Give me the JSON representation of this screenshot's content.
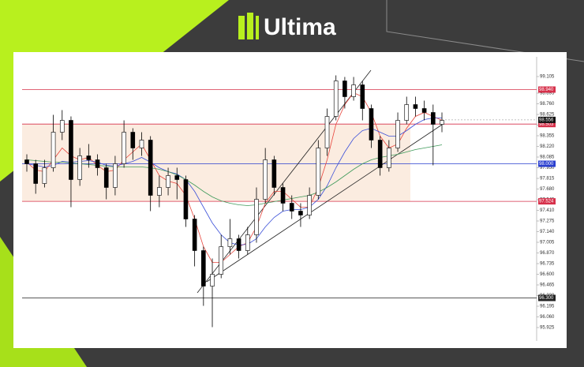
{
  "brand": "Ultima",
  "chart_data": {
    "type": "candlestick",
    "ylim": [
      95.875,
      99.225
    ],
    "yticks": [
      99.105,
      98.895,
      {
        "value": 98.76,
        "label": "98.760"
      },
      98.625,
      {
        "value": 98.49,
        "label": "98.490"
      },
      98.355,
      {
        "value": 98.22,
        "label": "98.220"
      },
      98.085,
      {
        "value": 97.95,
        "label": "97.950"
      },
      97.815,
      {
        "value": 97.68,
        "label": "97.680"
      },
      97.545,
      {
        "value": 97.41,
        "label": "97.410"
      },
      97.275,
      {
        "value": 97.14,
        "label": "97.140"
      },
      97.005,
      {
        "value": 96.87,
        "label": "96.870"
      },
      96.735,
      {
        "value": 96.6,
        "label": "96.600"
      },
      96.465,
      {
        "value": 96.33,
        "label": "96.330"
      },
      96.195,
      {
        "value": 96.06,
        "label": "96.060"
      },
      95.925
    ],
    "up_color": "#ffffff",
    "down_color": "#000000",
    "open": [
      98.05,
      98.0,
      97.75,
      97.95,
      98.4,
      98.55,
      97.8,
      98.1,
      98.05,
      97.95,
      97.7,
      98.0,
      98.4,
      98.2,
      98.3,
      97.6,
      97.7,
      97.85,
      97.8,
      97.3,
      96.9,
      96.45,
      96.6,
      96.95,
      97.05,
      96.9,
      97.1,
      97.55,
      98.05,
      97.7,
      97.5,
      97.4,
      97.35,
      97.6,
      98.2,
      98.6,
      99.05,
      98.85,
      99.0,
      98.7,
      98.3,
      97.95,
      98.2,
      98.55,
      98.75,
      98.7,
      98.65,
      98.5
    ],
    "high": [
      98.12,
      98.05,
      98.05,
      98.62,
      98.68,
      98.6,
      98.2,
      98.25,
      98.12,
      98.0,
      98.1,
      98.55,
      98.45,
      98.4,
      98.35,
      97.85,
      97.95,
      97.95,
      97.85,
      97.35,
      96.95,
      96.8,
      97.1,
      97.3,
      97.1,
      97.2,
      97.7,
      98.2,
      98.1,
      97.75,
      97.6,
      97.5,
      97.7,
      98.3,
      98.7,
      99.12,
      99.1,
      99.1,
      99.05,
      98.75,
      98.35,
      98.3,
      98.65,
      98.85,
      98.85,
      98.8,
      98.75,
      98.65
    ],
    "low": [
      97.9,
      97.62,
      97.7,
      97.9,
      98.3,
      97.45,
      97.72,
      97.95,
      97.85,
      97.55,
      97.6,
      97.95,
      98.05,
      98.1,
      97.4,
      97.45,
      97.6,
      97.55,
      97.2,
      96.7,
      96.2,
      95.93,
      96.55,
      96.85,
      96.8,
      96.85,
      97.0,
      97.5,
      97.6,
      97.4,
      97.3,
      97.2,
      97.3,
      97.55,
      98.1,
      98.55,
      98.7,
      98.8,
      98.55,
      98.2,
      97.85,
      97.9,
      98.15,
      98.5,
      98.6,
      98.55,
      97.98,
      98.4
    ],
    "close": [
      98.0,
      97.75,
      97.95,
      98.4,
      98.55,
      97.8,
      98.1,
      98.05,
      97.95,
      97.7,
      98.0,
      98.4,
      98.2,
      98.3,
      97.6,
      97.7,
      97.85,
      97.8,
      97.3,
      96.9,
      96.45,
      96.6,
      96.95,
      97.05,
      96.9,
      97.1,
      97.55,
      98.05,
      97.7,
      97.5,
      97.4,
      97.35,
      97.6,
      98.2,
      98.6,
      99.05,
      98.85,
      99.0,
      98.7,
      98.3,
      97.95,
      98.2,
      98.55,
      98.75,
      98.7,
      98.65,
      98.5,
      98.55
    ],
    "moving_averages": [
      {
        "color": "#e8453c",
        "values": [
          98.02,
          97.92,
          97.9,
          98.05,
          98.2,
          98.1,
          98.05,
          98.08,
          97.98,
          97.9,
          97.92,
          98.05,
          98.15,
          98.25,
          98.05,
          97.85,
          97.78,
          97.75,
          97.6,
          97.3,
          96.95,
          96.75,
          96.75,
          96.85,
          96.95,
          97.0,
          97.2,
          97.5,
          97.65,
          97.65,
          97.55,
          97.45,
          97.45,
          97.7,
          98.05,
          98.5,
          98.75,
          98.9,
          98.85,
          98.65,
          98.35,
          98.2,
          98.25,
          98.45,
          98.6,
          98.65,
          98.6,
          98.55
        ]
      },
      {
        "color": "#3a4fd8",
        "values": [
          98.0,
          97.98,
          97.96,
          97.98,
          98.03,
          98.02,
          98.03,
          98.04,
          98.02,
          97.98,
          97.97,
          98.0,
          98.03,
          98.08,
          98.02,
          97.95,
          97.9,
          97.87,
          97.8,
          97.65,
          97.45,
          97.25,
          97.1,
          97.0,
          96.97,
          96.98,
          97.05,
          97.2,
          97.32,
          97.4,
          97.42,
          97.42,
          97.45,
          97.55,
          97.72,
          97.95,
          98.15,
          98.32,
          98.42,
          98.45,
          98.4,
          98.35,
          98.35,
          98.42,
          98.5,
          98.56,
          98.58,
          98.58
        ]
      },
      {
        "color": "#3e9a5a",
        "values": [
          98.05,
          98.04,
          98.03,
          98.02,
          98.02,
          98.01,
          98.0,
          97.99,
          97.98,
          97.97,
          97.96,
          97.96,
          97.96,
          97.96,
          97.95,
          97.93,
          97.9,
          97.86,
          97.8,
          97.73,
          97.65,
          97.58,
          97.53,
          97.5,
          97.48,
          97.47,
          97.48,
          97.5,
          97.52,
          97.54,
          97.56,
          97.58,
          97.6,
          97.64,
          97.7,
          97.77,
          97.85,
          97.93,
          98.0,
          98.05,
          98.08,
          98.1,
          98.12,
          98.15,
          98.18,
          98.2,
          98.22,
          98.24
        ]
      }
    ],
    "levels": [
      {
        "value": 98.94,
        "label": "98.940",
        "color": "#d6304a"
      },
      {
        "value": 98.503,
        "label": "98.503",
        "color": "#d6304a"
      },
      {
        "value": 98,
        "label": "98.000",
        "color": "#2a3fcf"
      },
      {
        "value": 97.524,
        "label": "97.524",
        "color": "#d6304a"
      },
      {
        "value": 96.3,
        "label": "96.300",
        "color": "#222222"
      }
    ],
    "zone_color": "#fbece0",
    "last_price": 98.556
  }
}
